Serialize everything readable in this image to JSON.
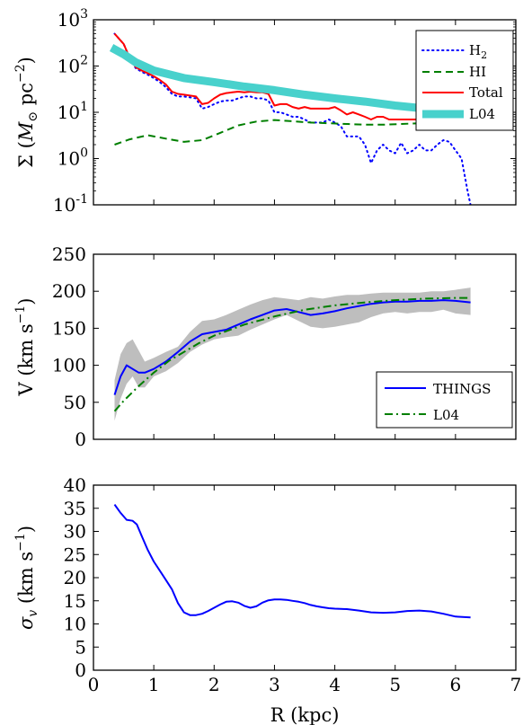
{
  "chart_data": [
    {
      "id": "surface-density",
      "type": "line",
      "yscale": "log",
      "xlim": [
        0,
        7
      ],
      "ylim": [
        0.1,
        1000
      ],
      "ytick_labels": [
        {
          "base": "10",
          "exp": "3"
        },
        {
          "base": "10",
          "exp": "2"
        },
        {
          "base": "10",
          "exp": "1"
        },
        {
          "base": "10",
          "exp": "0"
        },
        {
          "base": "10",
          "exp": "-1"
        }
      ],
      "ytick_values": [
        1000,
        100,
        10,
        1,
        0.1
      ],
      "xlabel": "",
      "ylabel": {
        "prefix": "Σ (",
        "unit_m": "M",
        "unit_sub": "⊙",
        "unit_pc": " pc",
        "unit_exp": "−2",
        "suffix": ")"
      },
      "legend": {
        "position": "top-right"
      },
      "series": [
        {
          "name": "H",
          "name_sub": "2",
          "style": "dotted",
          "color": "#0000ff",
          "width": 2,
          "x": [
            0.35,
            0.5,
            0.6,
            0.7,
            0.8,
            0.9,
            1.0,
            1.1,
            1.2,
            1.3,
            1.4,
            1.5,
            1.6,
            1.7,
            1.8,
            1.9,
            2.0,
            2.1,
            2.2,
            2.3,
            2.4,
            2.5,
            2.6,
            2.7,
            2.8,
            2.9,
            3.0,
            3.1,
            3.2,
            3.3,
            3.4,
            3.5,
            3.6,
            3.7,
            3.8,
            3.9,
            4.0,
            4.1,
            4.2,
            4.3,
            4.4,
            4.5,
            4.6,
            4.7,
            4.8,
            4.9,
            5.0,
            5.1,
            5.2,
            5.3,
            5.4,
            5.5,
            5.6,
            5.7,
            5.8,
            5.9,
            6.0,
            6.1,
            6.2,
            6.25
          ],
          "y": [
            500,
            300,
            150,
            90,
            75,
            65,
            55,
            45,
            35,
            25,
            22,
            22,
            21,
            20,
            12,
            13,
            15,
            17,
            18,
            18,
            20,
            22,
            22,
            20,
            20,
            18,
            10,
            10,
            9,
            8,
            8,
            7,
            6,
            6,
            6,
            7,
            6,
            5,
            3,
            3,
            3,
            2,
            0.8,
            1.5,
            2,
            1.5,
            1.3,
            2.2,
            1.3,
            1.5,
            2,
            1.5,
            1.5,
            2,
            2.5,
            2.3,
            1.5,
            1,
            0.2,
            0.1
          ]
        },
        {
          "name": "HI",
          "style": "dashed",
          "color": "#007f00",
          "width": 2,
          "x": [
            0.35,
            0.6,
            0.9,
            1.2,
            1.5,
            1.8,
            2.1,
            2.4,
            2.7,
            3.0,
            3.3,
            3.6,
            3.9,
            4.2,
            4.5,
            4.8,
            5.1,
            5.4,
            5.7,
            6.0,
            6.25
          ],
          "y": [
            2.0,
            2.6,
            3.2,
            2.7,
            2.3,
            2.5,
            3.6,
            5.2,
            6.3,
            6.8,
            6.4,
            6.0,
            5.8,
            5.6,
            5.4,
            5.4,
            5.6,
            5.8,
            5.7,
            5.2,
            4.8
          ]
        },
        {
          "name": "Total",
          "style": "solid",
          "color": "#ff0000",
          "width": 2,
          "x": [
            0.35,
            0.5,
            0.6,
            0.7,
            0.8,
            0.9,
            1.0,
            1.1,
            1.2,
            1.3,
            1.4,
            1.5,
            1.6,
            1.7,
            1.8,
            1.9,
            2.0,
            2.1,
            2.2,
            2.3,
            2.4,
            2.5,
            2.6,
            2.7,
            2.8,
            2.9,
            3.0,
            3.1,
            3.2,
            3.3,
            3.4,
            3.5,
            3.6,
            3.7,
            3.8,
            3.9,
            4.0,
            4.1,
            4.2,
            4.3,
            4.4,
            4.5,
            4.6,
            4.7,
            4.8,
            4.9,
            5.0,
            5.2,
            5.4,
            5.6,
            5.8,
            6.0,
            6.25
          ],
          "y": [
            500,
            300,
            150,
            95,
            80,
            70,
            60,
            50,
            40,
            28,
            25,
            24,
            23,
            22,
            15,
            16,
            20,
            24,
            26,
            27,
            28,
            27,
            28,
            27,
            27,
            25,
            14,
            15,
            15,
            13,
            12,
            13,
            12,
            12,
            12,
            12,
            13,
            11,
            9,
            10,
            9,
            8,
            7,
            8,
            8,
            7,
            7,
            7,
            7,
            7,
            7,
            5.5,
            4.2
          ]
        },
        {
          "name": "L04",
          "style": "thick",
          "color": "#48d1cc",
          "width": 9,
          "x": [
            0.3,
            0.5,
            0.7,
            1.0,
            1.5,
            2.0,
            2.5,
            3.0,
            3.5,
            4.0,
            4.5,
            5.0,
            5.5,
            6.0,
            6.25
          ],
          "y": [
            250,
            180,
            120,
            80,
            55,
            45,
            36,
            30,
            24,
            20,
            17,
            14,
            12,
            10,
            9
          ]
        }
      ]
    },
    {
      "id": "rotation-velocity",
      "type": "line",
      "xlim": [
        0,
        7
      ],
      "ylim": [
        0,
        250
      ],
      "ytick_labels": [
        "250",
        "200",
        "150",
        "100",
        "50",
        "0"
      ],
      "ytick_values": [
        250,
        200,
        150,
        100,
        50,
        0
      ],
      "xlabel": "",
      "ylabel": "V (km s",
      "ylabel_exp": "−1",
      "ylabel_suffix": ")",
      "legend": {
        "position": "bottom-right"
      },
      "band": {
        "color": "#bebebe",
        "x": [
          0.35,
          0.45,
          0.55,
          0.65,
          0.75,
          0.85,
          1.0,
          1.2,
          1.4,
          1.6,
          1.8,
          2.0,
          2.2,
          2.4,
          2.6,
          2.8,
          3.0,
          3.2,
          3.4,
          3.6,
          3.8,
          4.0,
          4.2,
          4.4,
          4.6,
          4.8,
          5.0,
          5.2,
          5.4,
          5.6,
          5.8,
          6.0,
          6.25
        ],
        "upper": [
          80,
          115,
          130,
          135,
          120,
          105,
          110,
          118,
          125,
          145,
          160,
          162,
          168,
          175,
          182,
          188,
          192,
          190,
          188,
          192,
          190,
          193,
          195,
          195,
          197,
          198,
          198,
          198,
          198,
          200,
          200,
          202,
          205
        ],
        "lower": [
          25,
          55,
          75,
          85,
          70,
          70,
          85,
          92,
          103,
          118,
          128,
          135,
          138,
          140,
          148,
          155,
          162,
          168,
          160,
          152,
          150,
          152,
          155,
          158,
          165,
          170,
          172,
          170,
          172,
          172,
          175,
          170,
          168
        ]
      },
      "series": [
        {
          "name": "THINGS",
          "style": "solid",
          "color": "#0000ff",
          "width": 2,
          "x": [
            0.35,
            0.45,
            0.55,
            0.65,
            0.75,
            0.85,
            1.0,
            1.2,
            1.4,
            1.6,
            1.8,
            2.0,
            2.2,
            2.4,
            2.6,
            2.8,
            3.0,
            3.2,
            3.4,
            3.6,
            3.8,
            4.0,
            4.2,
            4.4,
            4.6,
            4.8,
            5.0,
            5.2,
            5.4,
            5.6,
            5.8,
            6.0,
            6.25
          ],
          "y": [
            60,
            85,
            100,
            95,
            90,
            90,
            95,
            105,
            118,
            132,
            142,
            145,
            148,
            155,
            162,
            168,
            174,
            176,
            172,
            168,
            170,
            173,
            177,
            180,
            183,
            185,
            186,
            186,
            187,
            187,
            188,
            187,
            185
          ]
        },
        {
          "name": "L04",
          "style": "dashdot",
          "color": "#007f00",
          "width": 2,
          "x": [
            0.35,
            0.5,
            0.75,
            1.0,
            1.25,
            1.5,
            1.75,
            2.0,
            2.5,
            3.0,
            3.5,
            4.0,
            4.5,
            5.0,
            5.5,
            6.0,
            6.25
          ],
          "y": [
            38,
            52,
            72,
            90,
            106,
            118,
            130,
            140,
            155,
            166,
            175,
            181,
            185,
            188,
            190,
            191,
            191
          ]
        }
      ]
    },
    {
      "id": "velocity-dispersion",
      "type": "line",
      "xlim": [
        0,
        7
      ],
      "ylim": [
        0,
        40
      ],
      "ytick_labels": [
        "40",
        "35",
        "30",
        "25",
        "20",
        "15",
        "10",
        "5",
        "0"
      ],
      "ytick_values": [
        40,
        35,
        30,
        25,
        20,
        15,
        10,
        5,
        0
      ],
      "xtick_labels": [
        "0",
        "1",
        "2",
        "3",
        "4",
        "5",
        "6",
        "7"
      ],
      "xtick_values": [
        0,
        1,
        2,
        3,
        4,
        5,
        6,
        7
      ],
      "xlabel": "R (kpc)",
      "ylabel": {
        "sym": "σ",
        "sub": "v",
        "text": " (km s",
        "exp": "−1",
        "suffix": ")"
      },
      "series": [
        {
          "name": "sigma",
          "style": "solid",
          "color": "#0000ff",
          "width": 2,
          "x": [
            0.35,
            0.45,
            0.55,
            0.65,
            0.72,
            0.8,
            0.9,
            1.0,
            1.1,
            1.2,
            1.3,
            1.4,
            1.5,
            1.6,
            1.7,
            1.8,
            1.9,
            2.0,
            2.1,
            2.2,
            2.3,
            2.4,
            2.5,
            2.6,
            2.7,
            2.8,
            2.9,
            3.0,
            3.1,
            3.2,
            3.3,
            3.4,
            3.5,
            3.6,
            3.7,
            3.8,
            3.9,
            4.0,
            4.2,
            4.4,
            4.6,
            4.8,
            5.0,
            5.2,
            5.4,
            5.6,
            5.8,
            6.0,
            6.25
          ],
          "y": [
            35.8,
            34,
            32.5,
            32.3,
            31.5,
            29,
            26,
            23.5,
            21.5,
            19.5,
            17.5,
            14.5,
            12.5,
            11.9,
            11.9,
            12.2,
            12.8,
            13.5,
            14.2,
            14.8,
            14.9,
            14.6,
            13.9,
            13.5,
            13.8,
            14.6,
            15.1,
            15.3,
            15.3,
            15.2,
            15.0,
            14.8,
            14.5,
            14.1,
            13.8,
            13.6,
            13.4,
            13.3,
            13.2,
            12.9,
            12.5,
            12.4,
            12.5,
            12.8,
            12.9,
            12.7,
            12.2,
            11.6,
            11.4
          ]
        }
      ]
    }
  ]
}
